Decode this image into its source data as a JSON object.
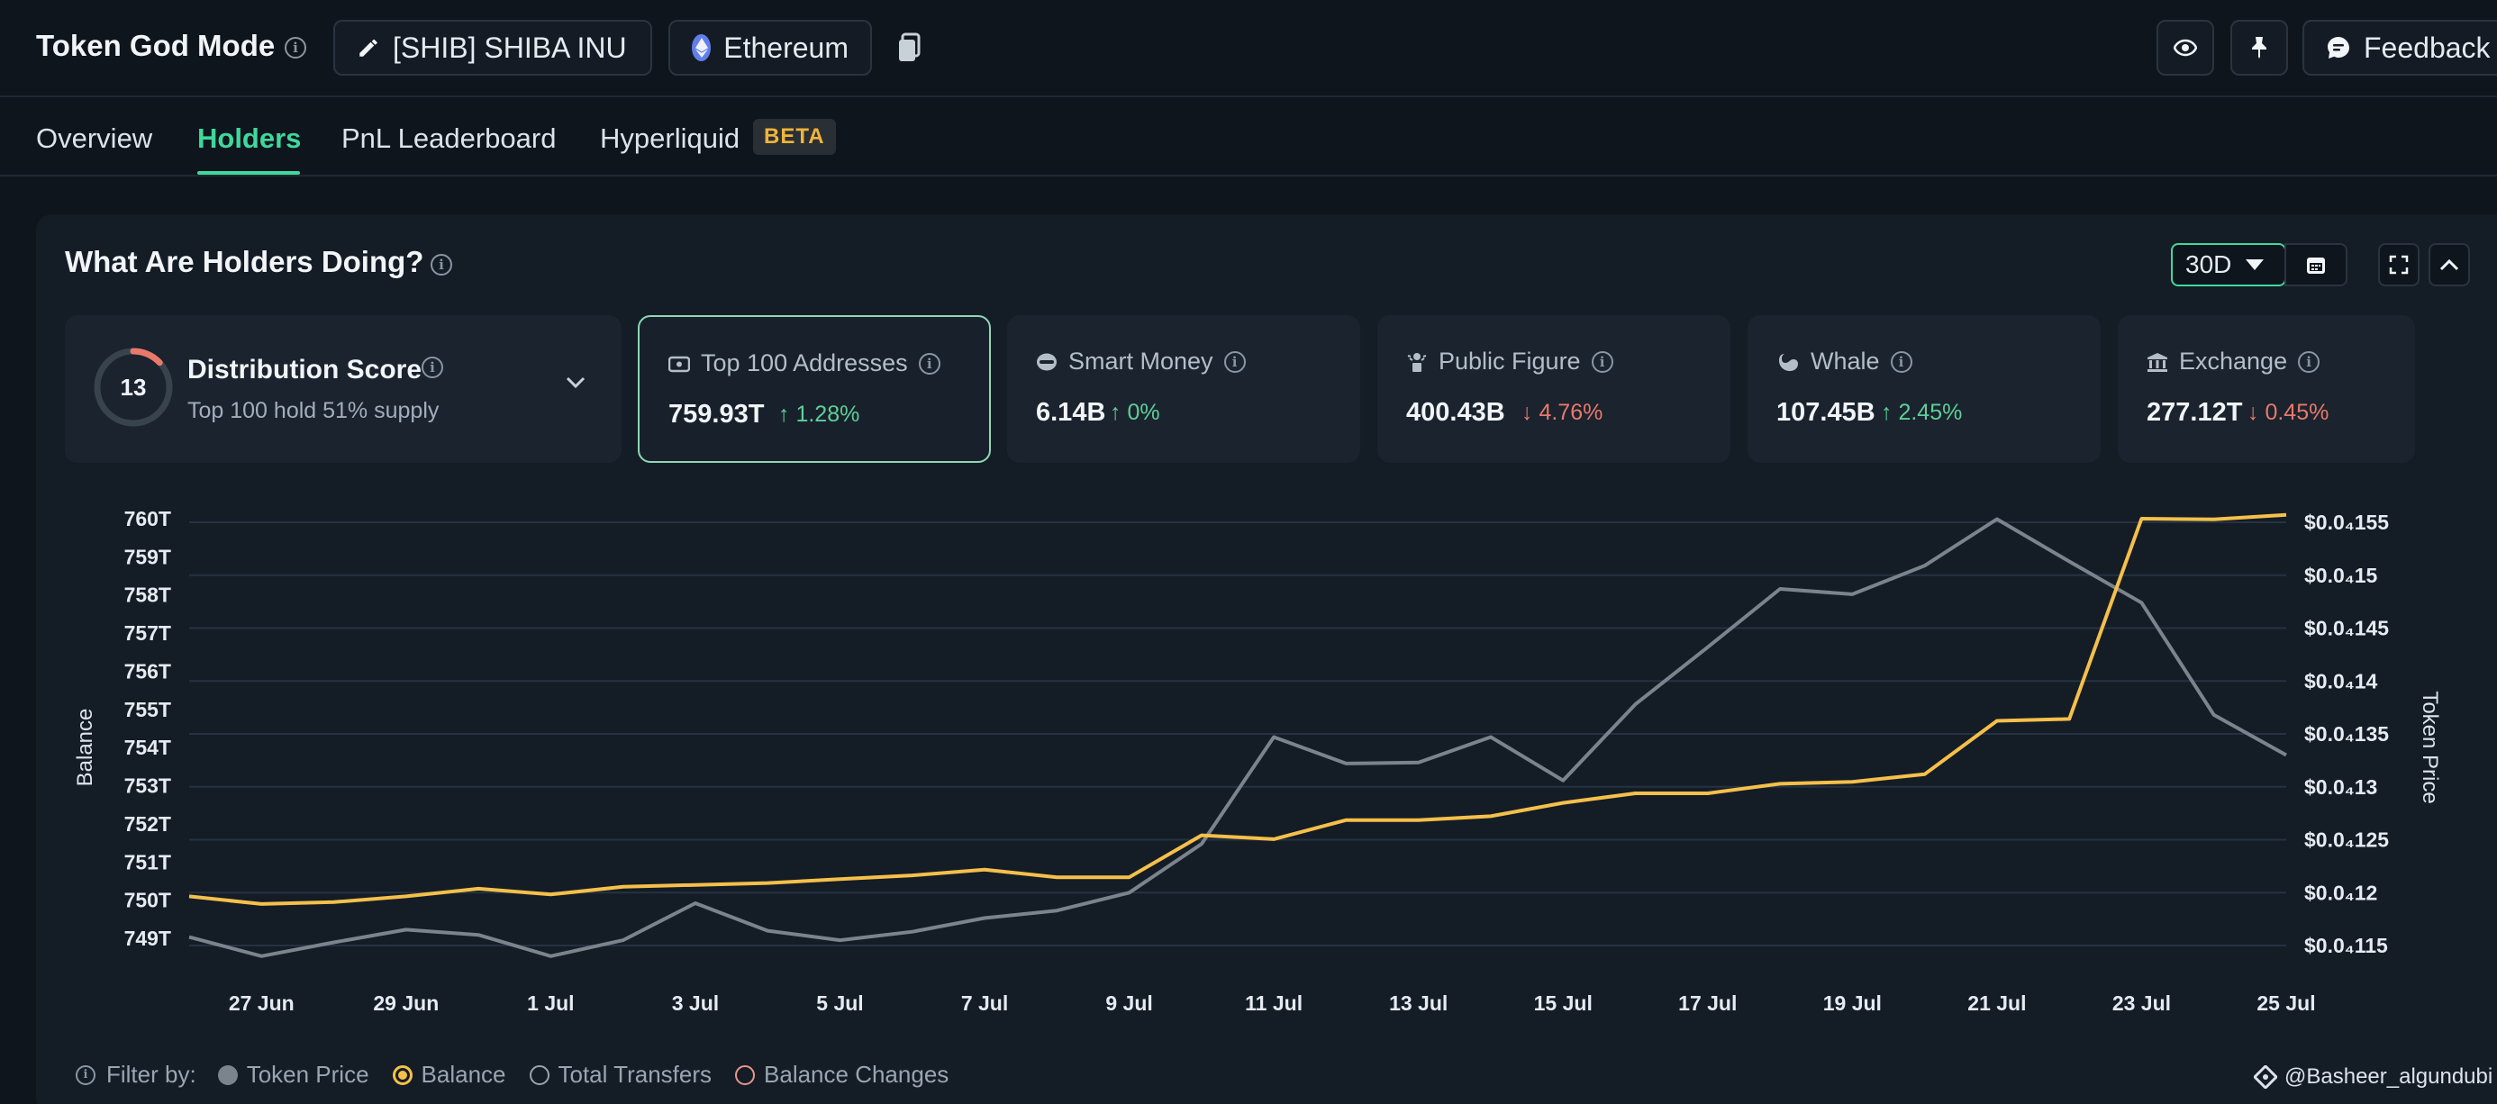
{
  "header": {
    "title": "Token God Mode",
    "token_label": "[SHIB] SHIBA INU",
    "chain_label": "Ethereum",
    "feedback_label": "Feedback"
  },
  "tabs": [
    {
      "label": "Overview"
    },
    {
      "label": "Holders"
    },
    {
      "label": "PnL Leaderboard"
    },
    {
      "label": "Hyperliquid"
    }
  ],
  "beta_badge": "BETA",
  "panel": {
    "title": "What Are Holders Doing?",
    "range": "30D"
  },
  "distribution": {
    "score": "13",
    "title": "Distribution Score",
    "subtitle": "Top 100 hold 51% supply",
    "score_fraction": 0.13
  },
  "cards": [
    {
      "label": "Top 100 Addresses",
      "value": "759.93T",
      "change": "1.28%",
      "direction": "up",
      "icon": "wallet-icon"
    },
    {
      "label": "Smart Money",
      "value": "6.14B",
      "change": "0%",
      "direction": "up",
      "icon": "brain-icon"
    },
    {
      "label": "Public Figure",
      "value": "400.43B",
      "change": "4.76%",
      "direction": "down",
      "icon": "podium-icon"
    },
    {
      "label": "Whale",
      "value": "107.45B",
      "change": "2.45%",
      "direction": "up",
      "icon": "whale-icon"
    },
    {
      "label": "Exchange",
      "value": "277.12T",
      "change": "0.45%",
      "direction": "down",
      "icon": "bank-icon"
    }
  ],
  "chart_data": {
    "type": "line",
    "xlabel": "",
    "ylabel": "Balance",
    "y2label": "Token Price",
    "x_ticks": [
      "27 Jun",
      "29 Jun",
      "1 Jul",
      "3 Jul",
      "5 Jul",
      "7 Jul",
      "9 Jul",
      "11 Jul",
      "13 Jul",
      "15 Jul",
      "17 Jul",
      "19 Jul",
      "21 Jul",
      "23 Jul",
      "25 Jul"
    ],
    "x": [
      "26 Jun",
      "27 Jun",
      "28 Jun",
      "29 Jun",
      "30 Jun",
      "1 Jul",
      "2 Jul",
      "3 Jul",
      "4 Jul",
      "5 Jul",
      "6 Jul",
      "7 Jul",
      "8 Jul",
      "9 Jul",
      "10 Jul",
      "11 Jul",
      "12 Jul",
      "13 Jul",
      "14 Jul",
      "15 Jul",
      "16 Jul",
      "17 Jul",
      "18 Jul",
      "19 Jul",
      "20 Jul",
      "21 Jul",
      "22 Jul",
      "23 Jul",
      "24 Jul",
      "25 Jul"
    ],
    "y_ticks": [
      "760T",
      "759T",
      "758T",
      "757T",
      "756T",
      "755T",
      "754T",
      "753T",
      "752T",
      "751T",
      "750T",
      "749T"
    ],
    "ylim": [
      749,
      760
    ],
    "y2_ticks": [
      "$0.0₄155",
      "$0.0₄15",
      "$0.0₄145",
      "$0.0₄14",
      "$0.0₄135",
      "$0.0₄13",
      "$0.0₄125",
      "$0.0₄12",
      "$0.0₄115"
    ],
    "y2lim": [
      1.15e-05,
      1.55e-05
    ],
    "series": [
      {
        "name": "Balance",
        "axis": "left",
        "color": "#f5c04a",
        "values": [
          750.1,
          749.9,
          749.95,
          750.1,
          750.3,
          750.15,
          750.35,
          750.4,
          750.45,
          750.55,
          750.65,
          750.8,
          750.6,
          750.6,
          751.7,
          751.6,
          752.1,
          752.1,
          752.2,
          752.55,
          752.8,
          752.8,
          753.05,
          753.1,
          753.3,
          754.7,
          754.75,
          760.0,
          759.98,
          760.1
        ],
        "unit": "T"
      },
      {
        "name": "Token Price",
        "axis": "right",
        "color": "#7b838c",
        "values": [
          1.158e-05,
          1.14e-05,
          1.153e-05,
          1.165e-05,
          1.16e-05,
          1.14e-05,
          1.155e-05,
          1.19e-05,
          1.164e-05,
          1.155e-05,
          1.163e-05,
          1.176e-05,
          1.183e-05,
          1.2e-05,
          1.246e-05,
          1.347e-05,
          1.322e-05,
          1.323e-05,
          1.347e-05,
          1.306e-05,
          1.378e-05,
          1.432e-05,
          1.487e-05,
          1.482e-05,
          1.509e-05,
          1.553e-05,
          1.513e-05,
          1.474e-05,
          1.368e-05,
          1.33e-05
        ]
      }
    ]
  },
  "filter": {
    "label": "Filter by:",
    "options": [
      "Token Price",
      "Balance",
      "Total Transfers",
      "Balance Changes"
    ]
  },
  "watermark": "@Basheer_algundubi"
}
